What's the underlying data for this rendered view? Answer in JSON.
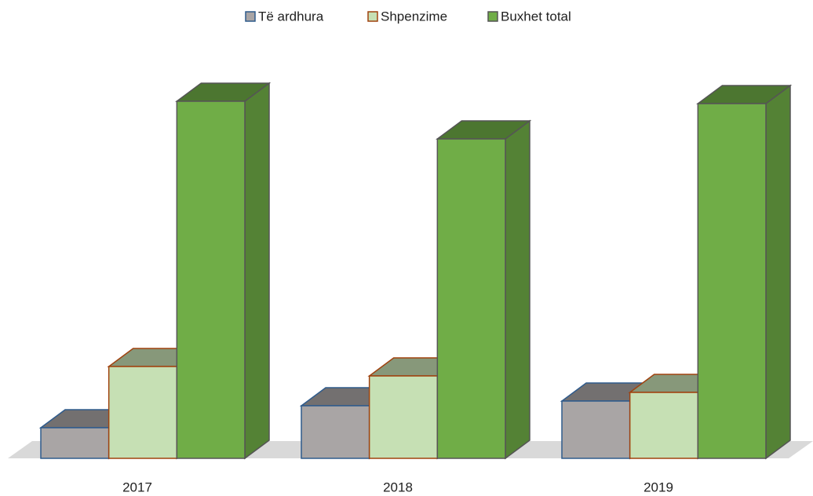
{
  "chart_data": {
    "type": "bar3d",
    "categories": [
      "2017",
      "2018",
      "2019"
    ],
    "series": [
      {
        "name": "Të ardhura",
        "color": "#a9a5a5",
        "edgecolor": "#2f5b8c",
        "values": [
          39,
          67,
          73
        ]
      },
      {
        "name": "Shpenzime",
        "color": "#c6e0b4",
        "edgecolor": "#a0420f",
        "values": [
          117,
          105,
          84
        ]
      },
      {
        "name": "Buxhet total",
        "color": "#70ad47",
        "edgecolor": "#555555",
        "values": [
          455,
          407,
          452
        ]
      }
    ],
    "legend": "top"
  }
}
